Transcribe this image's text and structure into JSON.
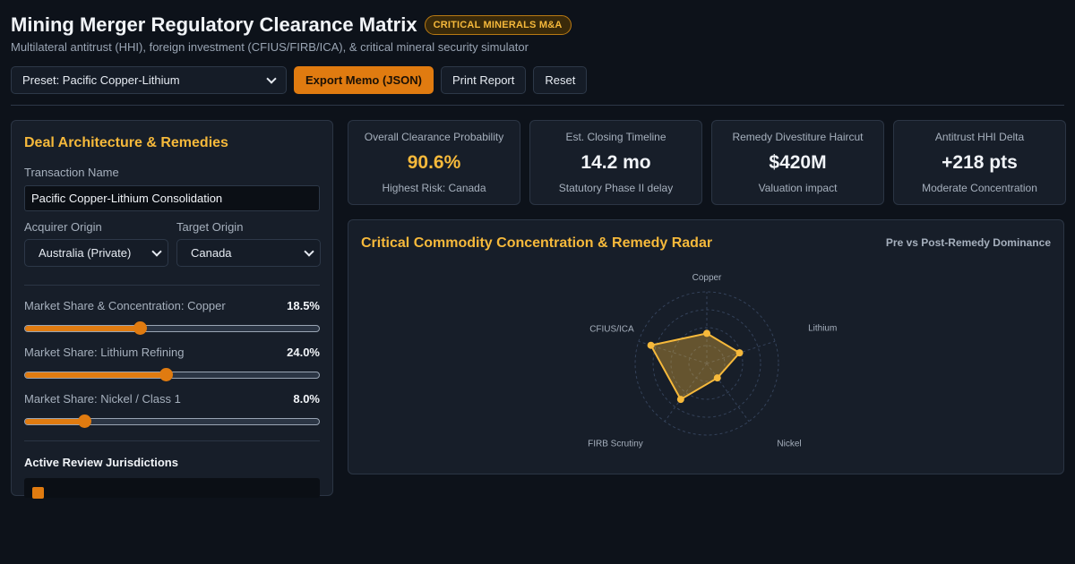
{
  "header": {
    "title": "Mining Merger Regulatory Clearance Matrix",
    "badge": "CRITICAL MINERALS M&A",
    "subtitle": "Multilateral antitrust (HHI), foreign investment (CFIUS/FIRB/ICA), & critical mineral security simulator"
  },
  "toolbar": {
    "preset_value": "Preset: Pacific Copper-Lithium",
    "export_label": "Export Memo (JSON)",
    "print_label": "Print Report",
    "reset_label": "Reset"
  },
  "deal": {
    "title": "Deal Architecture & Remedies",
    "transaction_label": "Transaction Name",
    "transaction_value": "Pacific Copper-Lithium Consolidation",
    "acquirer_label": "Acquirer Origin",
    "acquirer_value": "Australia (Private)",
    "target_label": "Target Origin",
    "target_value": "Canada",
    "sliders": [
      {
        "label": "Market Share & Concentration: Copper",
        "display": "18.5%",
        "fraction": 0.39
      },
      {
        "label": "Market Share: Lithium Refining",
        "display": "24.0%",
        "fraction": 0.48
      },
      {
        "label": "Market Share: Nickel / Class 1",
        "display": "8.0%",
        "fraction": 0.2
      }
    ],
    "jurisdictions_title": "Active Review Jurisdictions"
  },
  "metrics": [
    {
      "label": "Overall Clearance Probability",
      "value": "90.6%",
      "sub": "Highest Risk: Canada",
      "accent": true
    },
    {
      "label": "Est. Closing Timeline",
      "value": "14.2 mo",
      "sub": "Statutory Phase II delay",
      "accent": false
    },
    {
      "label": "Remedy Divestiture Haircut",
      "value": "$420M",
      "sub": "Valuation impact",
      "accent": false
    },
    {
      "label": "Antitrust HHI Delta",
      "value": "+218 pts",
      "sub": "Moderate Concentration",
      "accent": false
    }
  ],
  "radar": {
    "title": "Critical Commodity Concentration & Remedy Radar",
    "legend": "Pre vs Post-Remedy Dominance",
    "axes": [
      "Copper",
      "Lithium",
      "Nickel",
      "FIRB Scrutiny",
      "CFIUS/ICA"
    ],
    "values": [
      0.42,
      0.48,
      0.25,
      0.62,
      0.82
    ],
    "color": "#f6b93b"
  }
}
